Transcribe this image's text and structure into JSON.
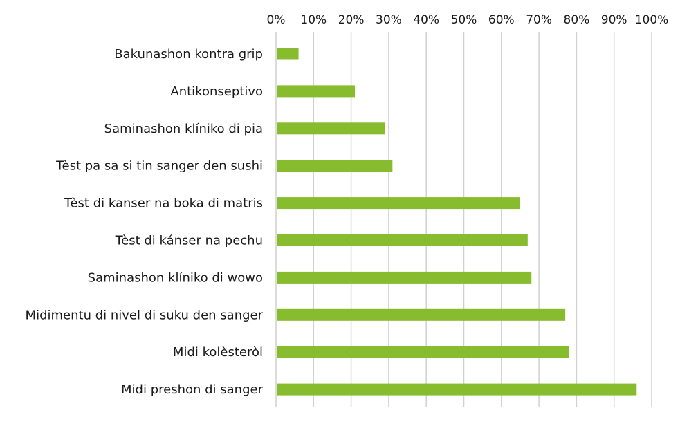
{
  "chart_data": {
    "type": "bar",
    "orientation": "horizontal",
    "categories": [
      "Bakunashon kontra grip",
      "Antikonseptivo",
      "Saminashon klíniko di pia",
      "Tèst pa sa si tin sanger den sushi",
      "Tèst di kanser na boka di matris",
      "Tèst di kánser na pechu",
      "Saminashon klíniko di wowo",
      "Midimentu di nivel di suku den sanger",
      "Midi kolèsteròl ",
      "Midi preshon di sanger"
    ],
    "values": [
      6,
      21,
      29,
      31,
      65,
      67,
      68,
      77,
      78,
      96
    ],
    "xlim": [
      0,
      100
    ],
    "xticks": [
      "0%",
      "10%",
      "20%",
      "30%",
      "40%",
      "50%",
      "60%",
      "70%",
      "80%",
      "90%",
      "100%"
    ],
    "x_axis_position": "top",
    "grid": true,
    "bar_color": "#87BC2E",
    "grid_color": "#d0d0d0",
    "title": "",
    "xlabel": "",
    "ylabel": ""
  }
}
